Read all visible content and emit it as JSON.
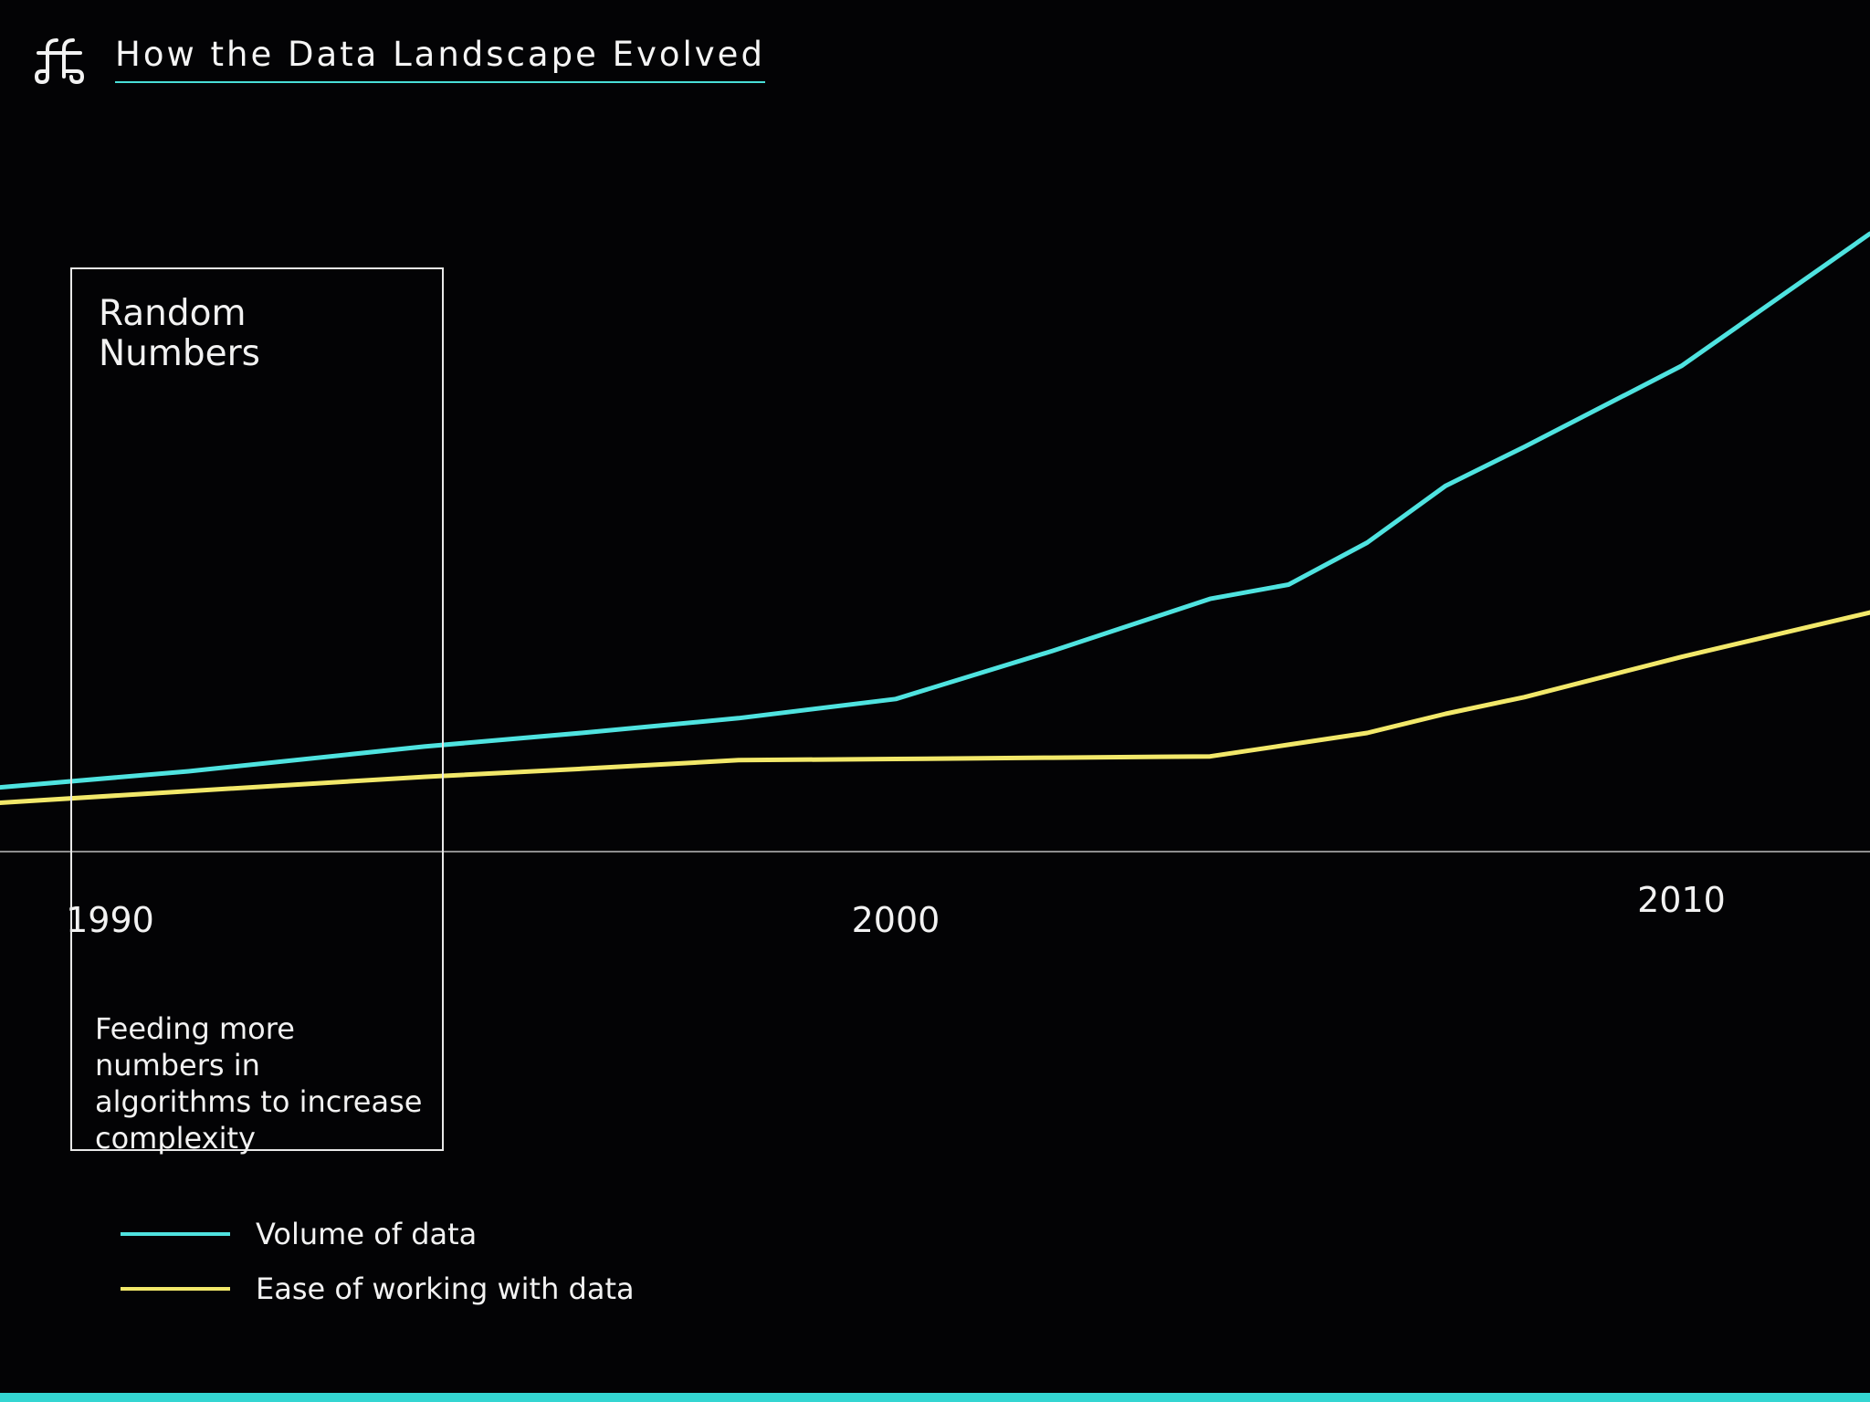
{
  "header": {
    "title": "How the Data Landscape Evolved",
    "logo_icon": "ff-monogram-icon"
  },
  "annotation": {
    "title": "Random Numbers",
    "description": "Feeding more numbers in algorithms to increase complexity"
  },
  "legend": {
    "items": [
      {
        "label": "Volume of data",
        "color": "#4fe3e0"
      },
      {
        "label": "Ease of working with data",
        "color": "#f2e86a"
      }
    ]
  },
  "colors": {
    "background": "#030305",
    "accent": "#34d6d2",
    "volume_line": "#4fe3e0",
    "ease_line": "#f2e86a",
    "axis": "#bdbdbd"
  },
  "chart_data": {
    "type": "line",
    "title": "How the Data Landscape Evolved",
    "xlabel": "",
    "ylabel": "",
    "xlim": [
      1988.6,
      2012.4
    ],
    "ylim": [
      0,
      100
    ],
    "x_ticks": [
      1990,
      2000,
      2010
    ],
    "x_tick_labels": [
      "1990",
      "2000",
      "2010"
    ],
    "grid": false,
    "legend_position": "bottom-left",
    "highlight_range": [
      1989,
      1994
    ],
    "highlight_label": "Random Numbers",
    "series": [
      {
        "name": "Volume of data",
        "color": "#4fe3e0",
        "x": [
          1988.6,
          1991,
          1994,
          1996,
          1998,
          2000,
          2002,
          2004,
          2005,
          2006,
          2007,
          2008,
          2010,
          2012.4
        ],
        "y": [
          10.4,
          13,
          17,
          19.2,
          21.6,
          24.7,
          32.5,
          40.9,
          43.2,
          50,
          59.2,
          65.5,
          78.6,
          100
        ]
      },
      {
        "name": "Ease of working with data",
        "color": "#f2e86a",
        "x": [
          1988.6,
          1991,
          1994,
          1996,
          1998,
          2000,
          2002,
          2004,
          2005,
          2006,
          2007,
          2008,
          2010,
          2012.4
        ],
        "y": [
          7.9,
          9.8,
          12.1,
          13.4,
          14.8,
          15.0,
          15.2,
          15.4,
          17.3,
          19.2,
          22.3,
          25.0,
          31.5,
          38.7
        ]
      }
    ]
  }
}
